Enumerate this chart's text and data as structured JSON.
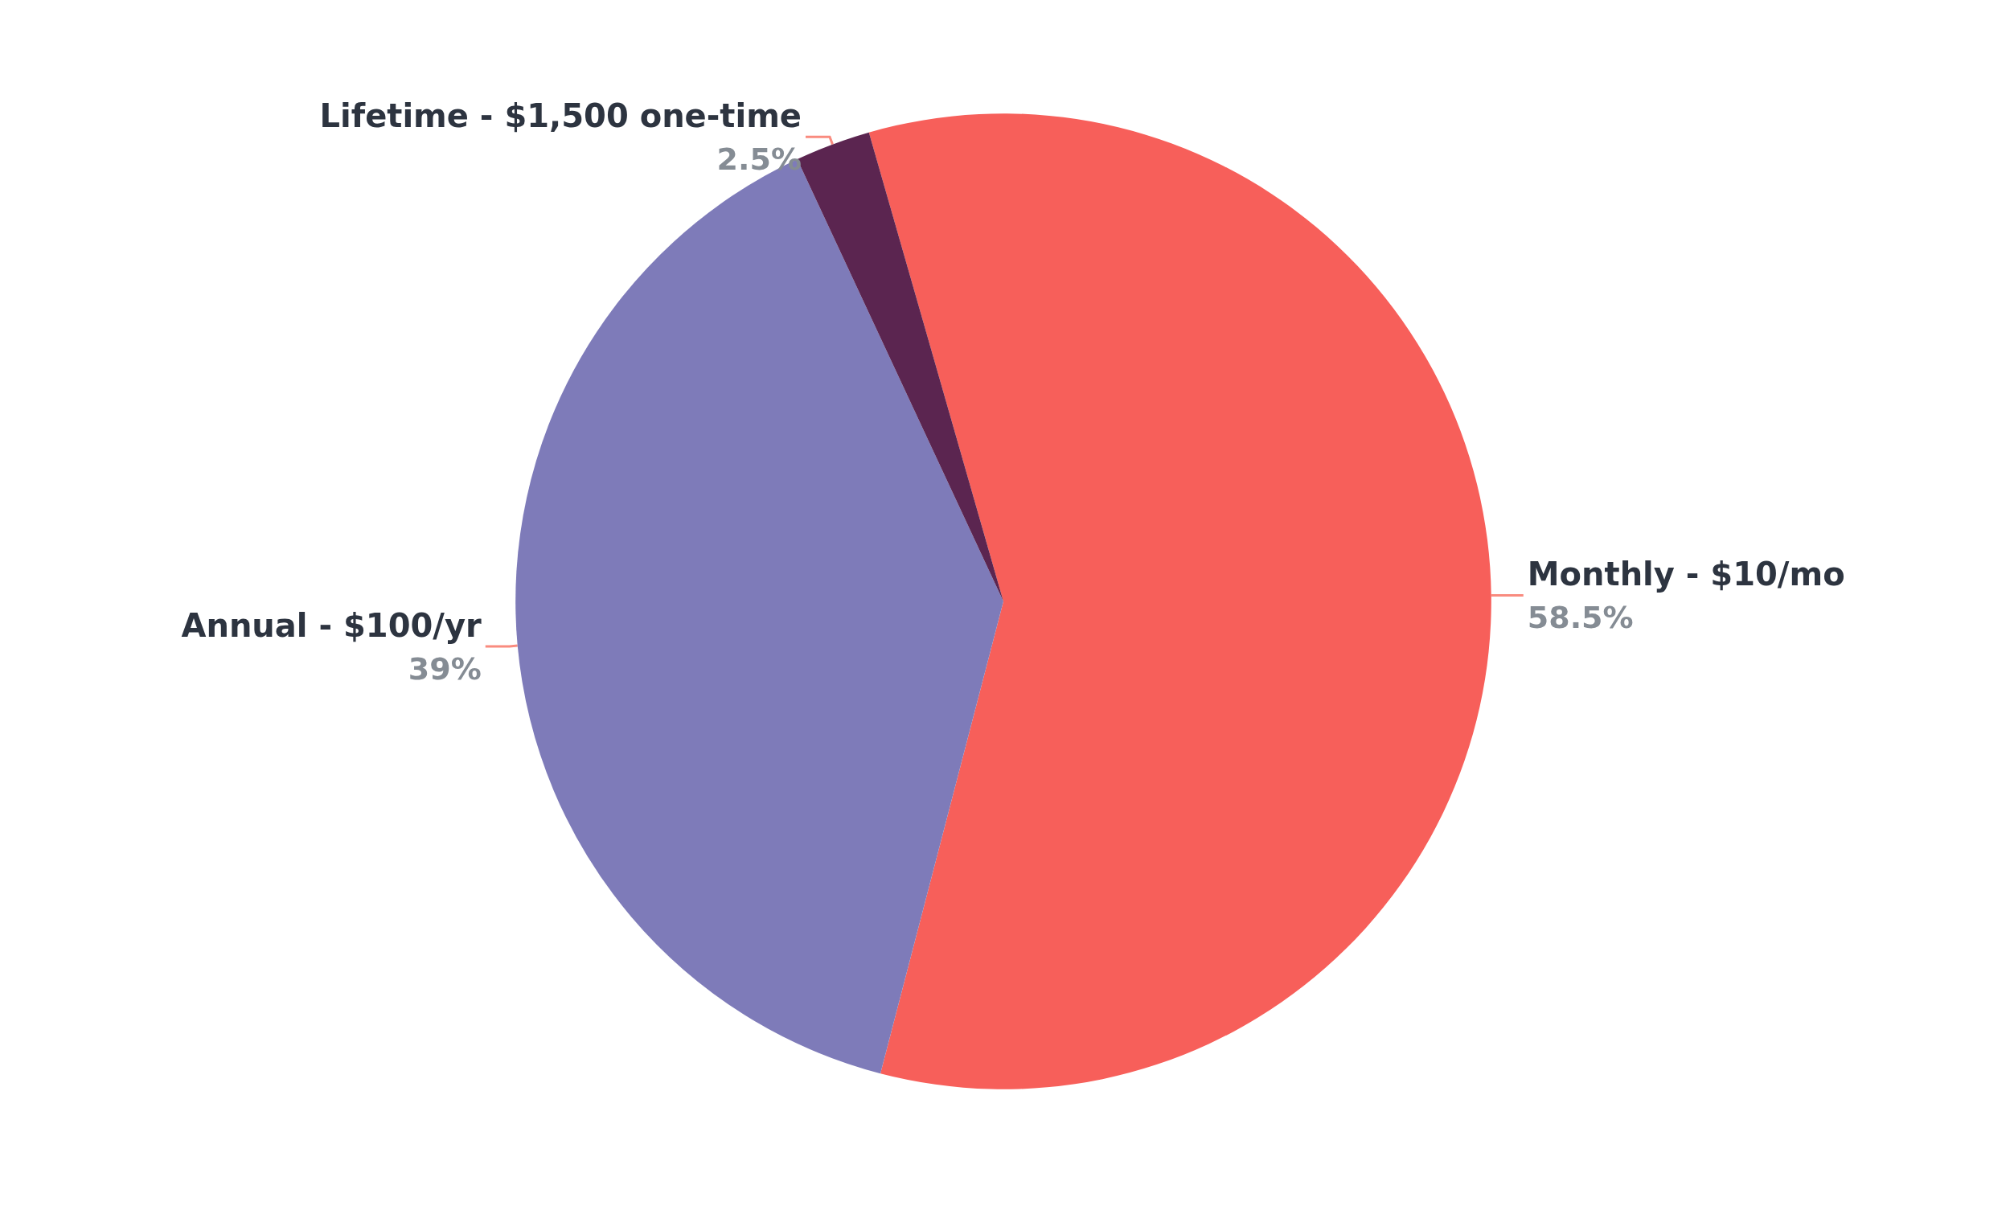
{
  "chart_data": {
    "type": "pie",
    "categories": [
      "Monthly - $10/mo",
      "Annual - $100/yr",
      "Lifetime - $1,500 one-time"
    ],
    "values": [
      58.5,
      39,
      2.5
    ],
    "value_labels": [
      "58.5%",
      "39%",
      "2.5%"
    ],
    "colors": [
      "#f75f5a",
      "#7e7bb9",
      "#5b2550"
    ],
    "legend": false
  }
}
